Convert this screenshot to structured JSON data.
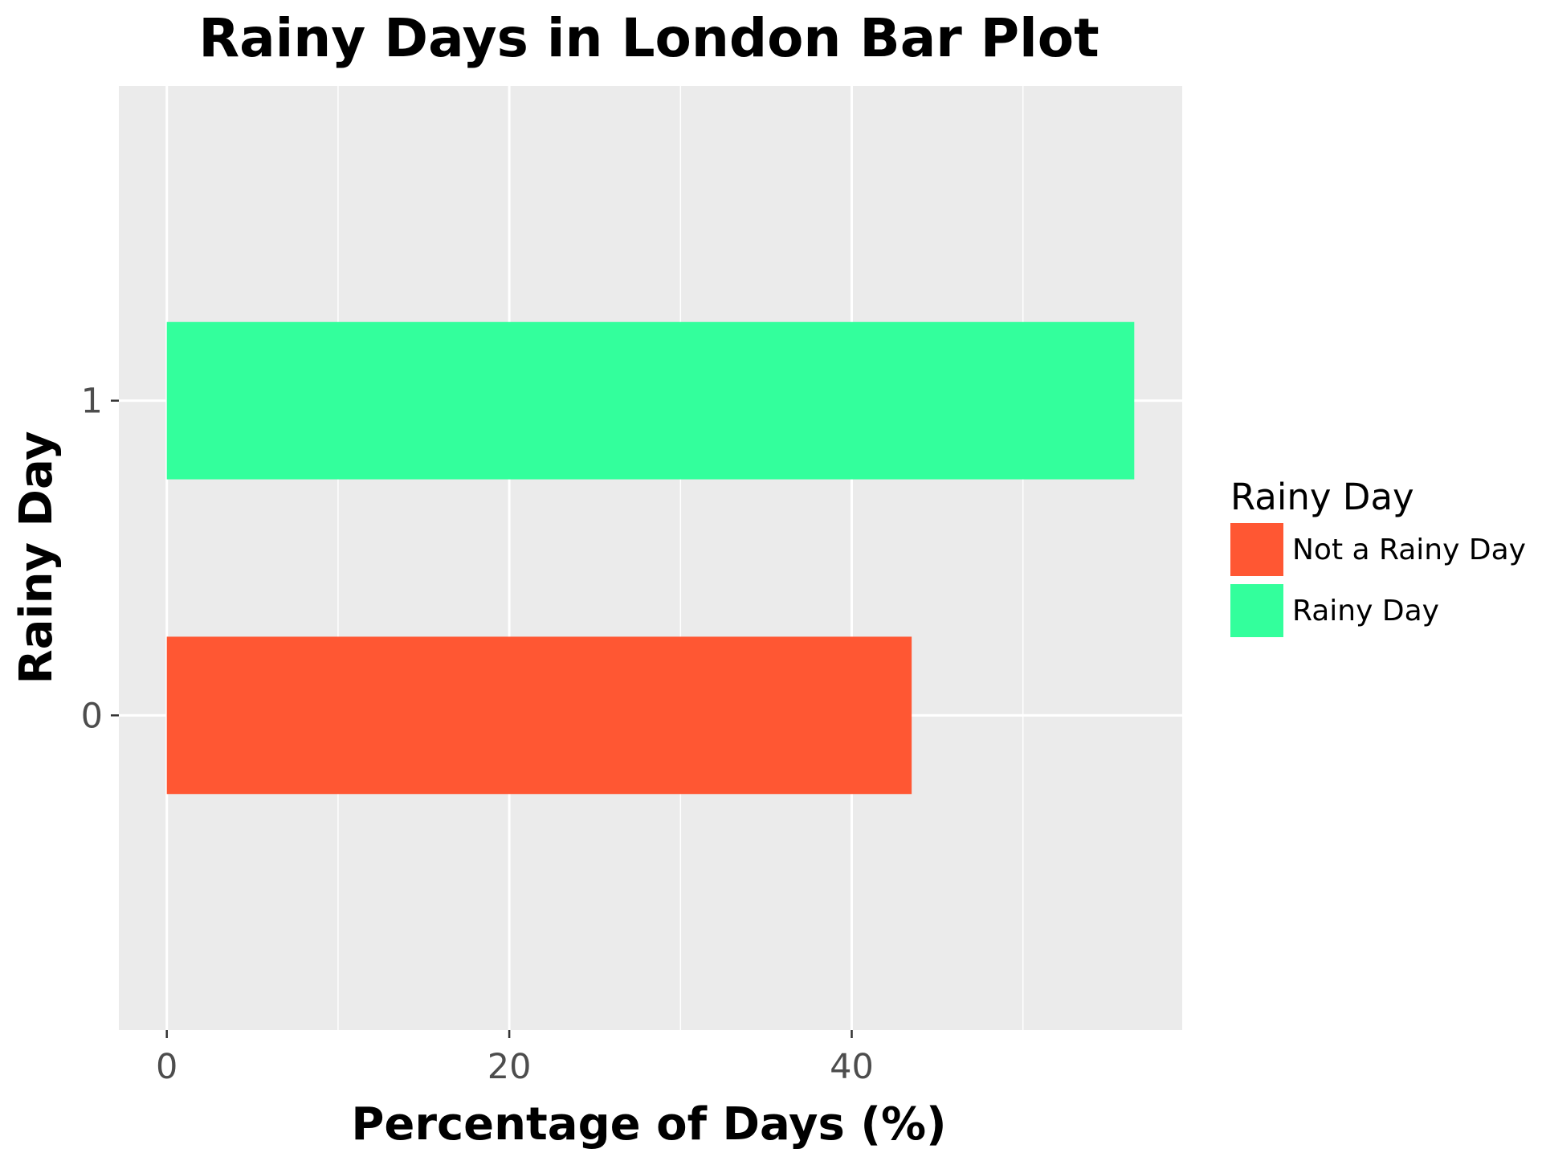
{
  "chart_data": {
    "type": "bar",
    "orientation": "horizontal",
    "title": "Rainy Days in London Bar Plot",
    "xlabel": "Percentage of Days (%)",
    "ylabel": "Rainy Day",
    "categories": [
      "0",
      "1"
    ],
    "values": [
      43.5,
      56.5
    ],
    "bar_colors": [
      "#ff5733",
      "#33ff9c"
    ],
    "xlim": [
      -2.8,
      59.3
    ],
    "x_ticks": [
      0,
      20,
      40
    ],
    "x_tick_labels": [
      "0",
      "20",
      "40"
    ],
    "grid": true,
    "panel_background": "#ebebeb",
    "legend": {
      "title": "Rainy Day",
      "placement": "right",
      "entries": [
        {
          "label": "Not a Rainy Day",
          "color": "#ff5733"
        },
        {
          "label": "Rainy Day",
          "color": "#33ff9c"
        }
      ]
    }
  }
}
